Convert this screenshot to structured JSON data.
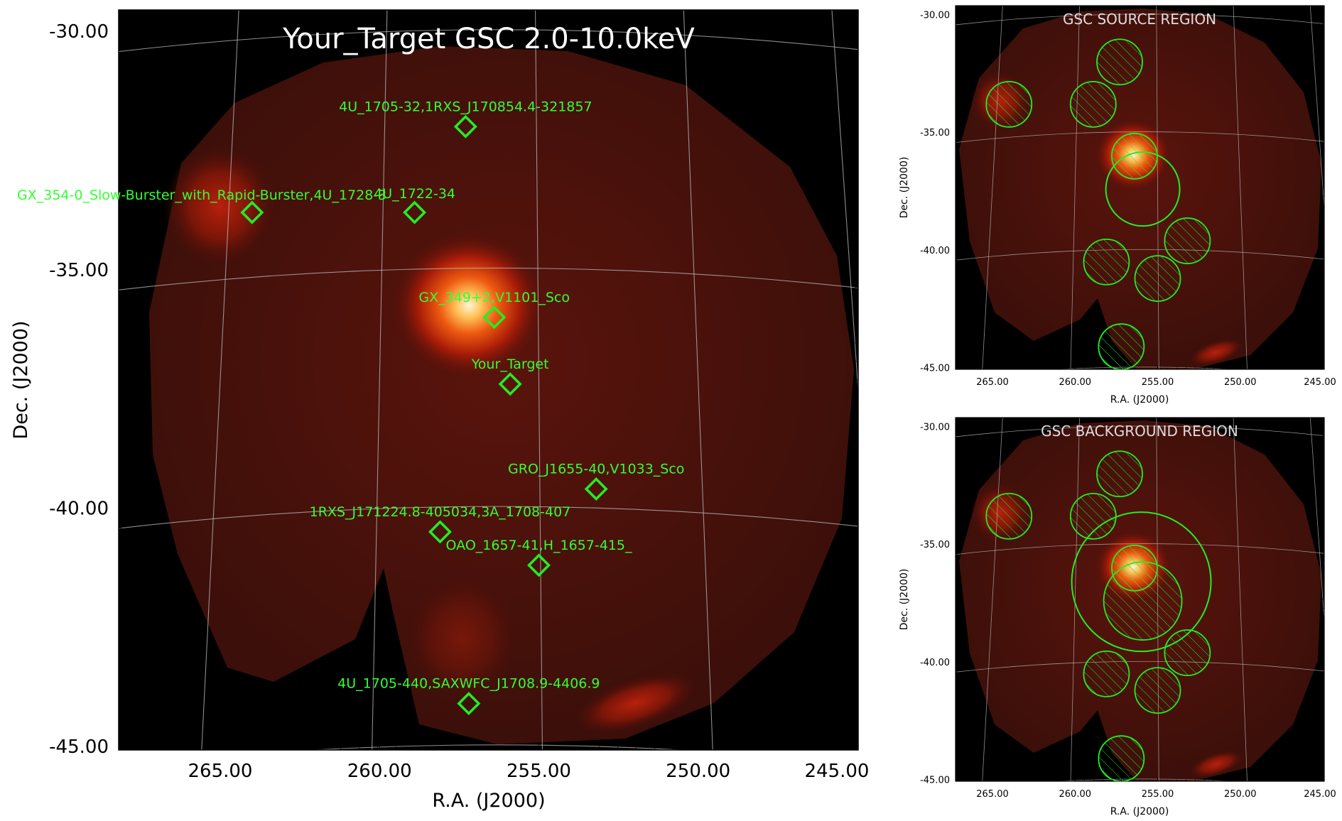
{
  "main": {
    "title": "Your_Target GSC 2.0-10.0keV",
    "xlabel": "R.A. (J2000)",
    "ylabel": "Dec. (J2000)",
    "ra_ticks": [
      "265.00",
      "260.00",
      "255.00",
      "250.00",
      "245.00"
    ],
    "dec_ticks": [
      "-30.00",
      "-35.00",
      "-40.00",
      "-45.00"
    ],
    "sources": [
      {
        "label": "4U_1705-32,1RXS_J170854.4-321857",
        "ra": 257.3,
        "dec": -32.0
      },
      {
        "label": "GX_354-0_Slow-Burster_with_Rapid-Burster,4U_1728-3",
        "ra": 264.0,
        "dec": -33.8
      },
      {
        "label": "4U_1722-34",
        "ra": 258.9,
        "dec": -33.8
      },
      {
        "label": "GX_349+2,V1101_Sco",
        "ra": 256.4,
        "dec": -36.0
      },
      {
        "label": "Your_Target",
        "ra": 255.9,
        "dec": -37.4
      },
      {
        "label": "GRO_J1655-40,V1033_Sco",
        "ra": 253.2,
        "dec": -39.6
      },
      {
        "label": "1RXS_J171224.8-405034,3A_1708-407",
        "ra": 258.1,
        "dec": -40.5
      },
      {
        "label": "OAO_1657-41,H_1657-415_",
        "ra": 255.0,
        "dec": -41.2
      },
      {
        "label": "4U_1705-440,SAXWFC_J1708.9-4406.9",
        "ra": 257.2,
        "dec": -44.1
      }
    ]
  },
  "source_panel": {
    "title": "GSC SOURCE REGION",
    "xlabel": "R.A. (J2000)",
    "ylabel": "Dec. (J2000)",
    "ra_ticks": [
      "265.00",
      "260.00",
      "255.00",
      "250.00",
      "245.00"
    ],
    "dec_ticks": [
      "-30.00",
      "-35.00",
      "-40.00",
      "-45.00"
    ]
  },
  "background_panel": {
    "title": "GSC BACKGROUND REGION",
    "xlabel": "R.A. (J2000)",
    "ylabel": "Dec. (J2000)",
    "ra_ticks": [
      "265.00",
      "260.00",
      "255.00",
      "250.00",
      "245.00"
    ],
    "dec_ticks": [
      "-30.00",
      "-35.00",
      "-40.00",
      "-45.00"
    ]
  },
  "colors": {
    "marker": "#22ee22",
    "label": "#33ff33",
    "grid": "#bbbbbb",
    "title_main": "#ffffff",
    "title_small": "#dddddd"
  }
}
